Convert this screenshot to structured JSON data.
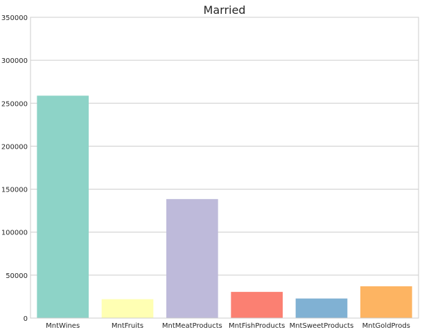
{
  "chart_data": {
    "type": "bar",
    "title": "Married",
    "xlabel": "",
    "ylabel": "",
    "categories": [
      "MntWines",
      "MntFruits",
      "MntMeatProducts",
      "MntFishProducts",
      "MntSweetProducts",
      "MntGoldProds"
    ],
    "values": [
      258800,
      22000,
      138500,
      30500,
      22800,
      37000
    ],
    "colors": [
      "#8dd3c7",
      "#ffffb3",
      "#bebada",
      "#fb8072",
      "#80b1d3",
      "#fdb462"
    ],
    "ylim": [
      0,
      350000
    ],
    "yticks": [
      0,
      50000,
      100000,
      150000,
      200000,
      250000,
      300000,
      350000
    ],
    "ytick_labels": [
      "0",
      "50000",
      "100000",
      "150000",
      "200000",
      "250000",
      "300000",
      "350000"
    ],
    "grid": true,
    "legend": "none"
  }
}
